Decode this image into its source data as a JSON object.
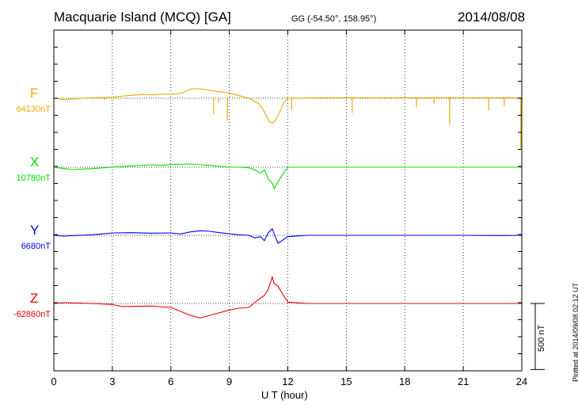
{
  "header": {
    "title": "Macquarie Island (MCQ)  [GA]",
    "coords": "GG (-54.50°, 158.95°)",
    "date": "2014/08/08"
  },
  "footer": {
    "plotted": "Plotted at 2014/09/08 02:12 UT",
    "scale_label": "500 nT"
  },
  "chart_data": {
    "type": "line",
    "title": "Macquarie Island (MCQ)  [GA]",
    "xlabel": "U T (hour)",
    "ylabel": "",
    "xlim": [
      0,
      24
    ],
    "xticks": [
      0,
      3,
      6,
      9,
      12,
      15,
      18,
      21,
      24
    ],
    "grid": true,
    "scale_bar_nT": 500,
    "series": [
      {
        "name": "F",
        "baseline_label": "64130nT",
        "color": "#f0a800",
        "x": [
          0,
          0.5,
          1,
          1.5,
          2,
          2.5,
          3,
          3.5,
          4,
          4.5,
          5,
          5.5,
          6,
          6.5,
          7,
          7.5,
          8,
          8.5,
          9,
          9.5,
          10,
          10.5,
          10.8,
          11,
          11.2,
          11.4,
          11.6,
          11.8,
          12,
          13,
          14,
          15,
          16,
          17,
          18,
          19,
          20,
          21,
          22,
          23,
          23.9,
          24
        ],
        "values": [
          0,
          -10,
          -6,
          0,
          4,
          6,
          8,
          16,
          22,
          28,
          26,
          30,
          32,
          36,
          70,
          72,
          60,
          50,
          40,
          20,
          0,
          -40,
          -100,
          -170,
          -190,
          -160,
          -100,
          -30,
          0,
          2,
          4,
          4,
          4,
          4,
          4,
          4,
          4,
          4,
          4,
          4,
          4,
          0
        ],
        "spikes": [
          {
            "x": 2.6,
            "value": -12
          },
          {
            "x": 8.2,
            "value": -120
          },
          {
            "x": 8.45,
            "value": -30
          },
          {
            "x": 8.9,
            "value": -170
          },
          {
            "x": 12.2,
            "value": -90
          },
          {
            "x": 15.3,
            "value": -110
          },
          {
            "x": 18.6,
            "value": -70
          },
          {
            "x": 19.5,
            "value": -40
          },
          {
            "x": 20.3,
            "value": -200
          },
          {
            "x": 22.3,
            "value": -90
          },
          {
            "x": 23.1,
            "value": -60
          },
          {
            "x": 23.95,
            "value": -380
          }
        ]
      },
      {
        "name": "X",
        "baseline_label": "10780nT",
        "color": "#00e000",
        "x": [
          0,
          0.5,
          1,
          2,
          3,
          4,
          5,
          5.5,
          6,
          7,
          8,
          8.5,
          9,
          9.5,
          10,
          10.3,
          10.6,
          10.8,
          11,
          11.2,
          11.3,
          11.5,
          11.8,
          12,
          13,
          15,
          18,
          21,
          23,
          24
        ],
        "values": [
          0,
          -10,
          -18,
          -10,
          0,
          10,
          18,
          14,
          20,
          24,
          14,
          6,
          0,
          0,
          -4,
          -20,
          -45,
          -20,
          -90,
          -120,
          -160,
          -110,
          -40,
          0,
          0,
          0,
          0,
          0,
          0,
          0
        ],
        "spikes": []
      },
      {
        "name": "Y",
        "baseline_label": "6680nT",
        "color": "#0000ee",
        "x": [
          0,
          0.5,
          1,
          2,
          3,
          4,
          5,
          6,
          6.5,
          7,
          7.5,
          8,
          8.5,
          9,
          9.5,
          10,
          10.3,
          10.6,
          10.8,
          11,
          11.2,
          11.3,
          11.5,
          11.7,
          12,
          13,
          15,
          18,
          21,
          23,
          24
        ],
        "values": [
          0,
          -6,
          -2,
          4,
          18,
          20,
          16,
          18,
          10,
          26,
          34,
          30,
          20,
          12,
          4,
          0,
          -20,
          -10,
          -40,
          20,
          50,
          10,
          -60,
          -40,
          -10,
          0,
          0,
          0,
          0,
          -2,
          0
        ],
        "spikes": []
      },
      {
        "name": "Z",
        "baseline_label": "-62860nT",
        "color": "#ee0000",
        "x": [
          0,
          0.5,
          1,
          2,
          3,
          3.5,
          4,
          5,
          6,
          6.5,
          7,
          7.5,
          8,
          8.5,
          9,
          9.5,
          10,
          10.5,
          10.8,
          11,
          11.2,
          11.3,
          11.5,
          11.7,
          12,
          13,
          15,
          18,
          21,
          24
        ],
        "values": [
          0,
          6,
          4,
          0,
          -8,
          -24,
          -22,
          -20,
          -30,
          -60,
          -90,
          -110,
          -90,
          -70,
          -50,
          -36,
          -30,
          30,
          60,
          110,
          200,
          150,
          130,
          80,
          10,
          0,
          0,
          0,
          0,
          0
        ],
        "spikes": []
      }
    ]
  }
}
